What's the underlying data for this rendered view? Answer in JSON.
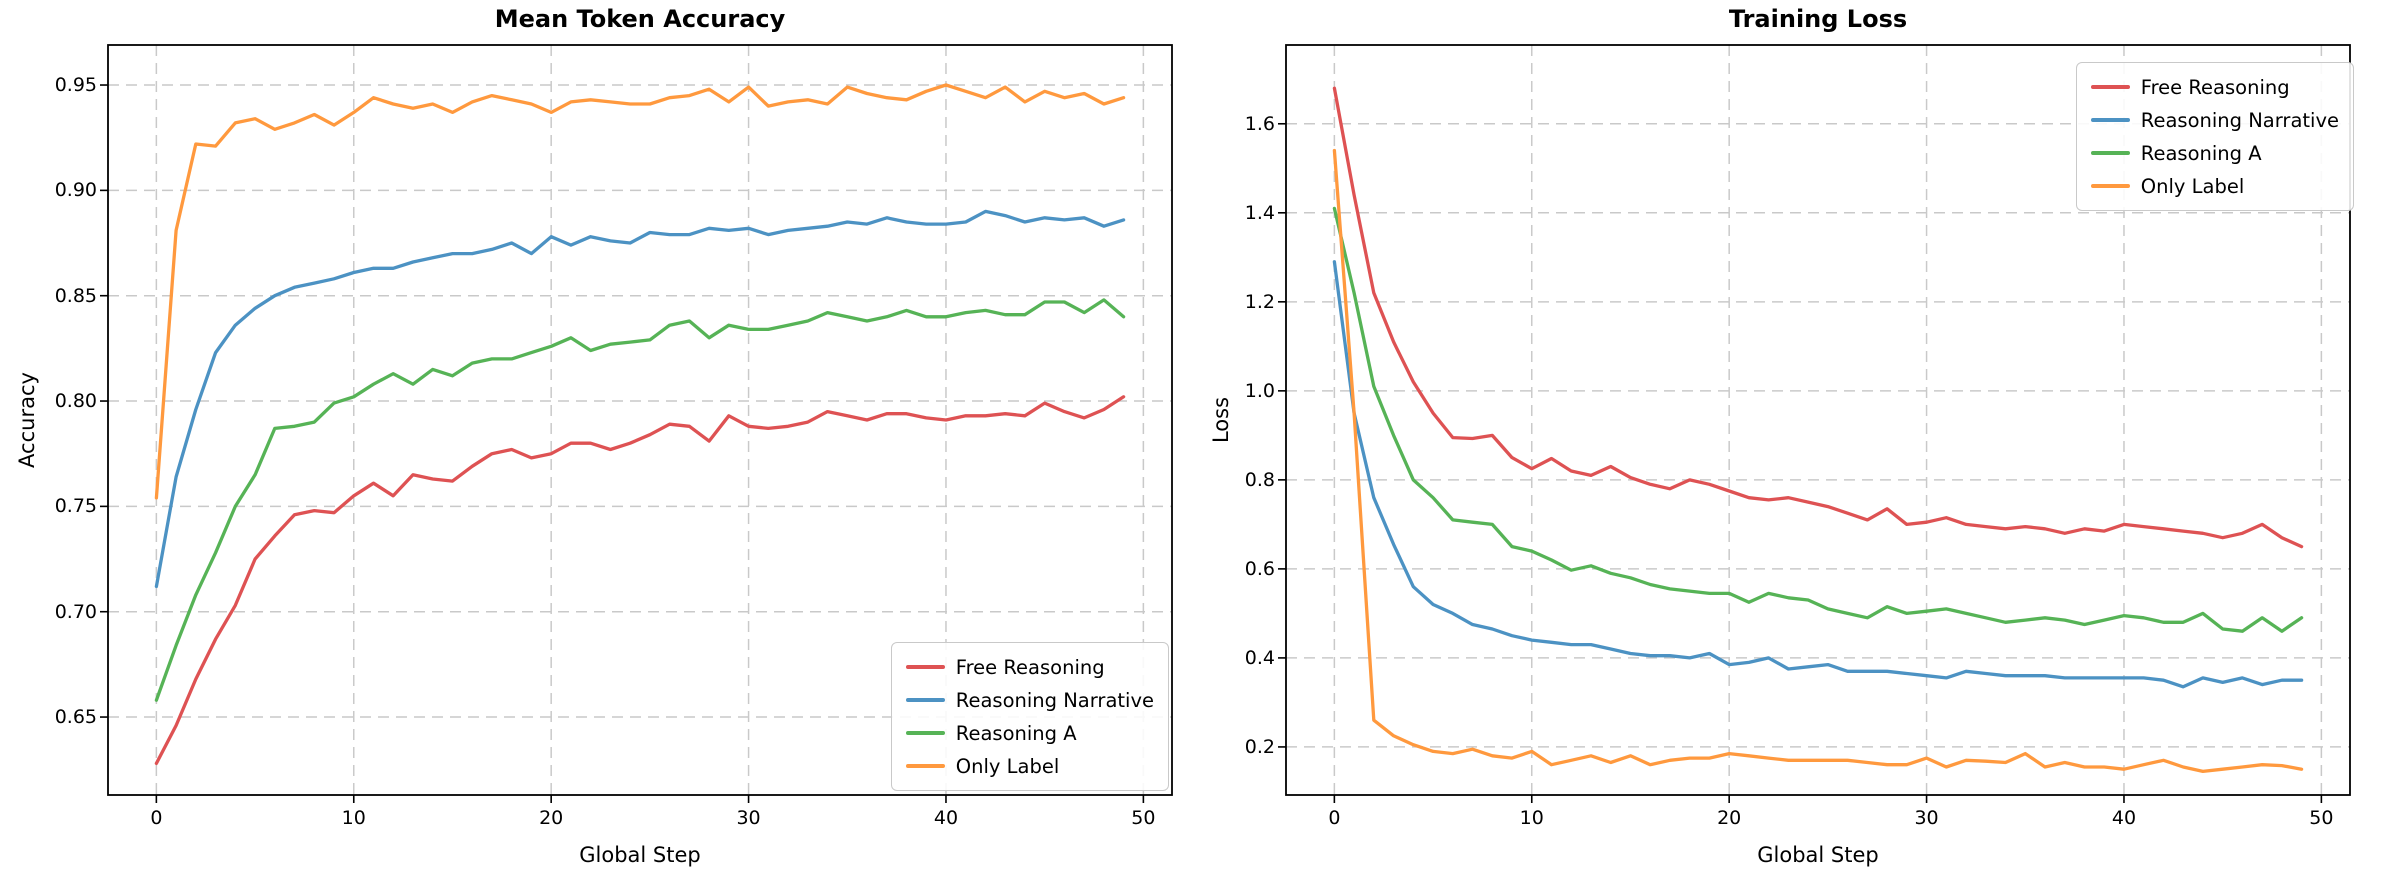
{
  "figure": {
    "background": "#ffffff"
  },
  "chart_data": [
    {
      "type": "line",
      "title": "Mean Token Accuracy",
      "xlabel": "Global Step",
      "ylabel": "Accuracy",
      "grid": true,
      "legend_position": "lower right",
      "x_ticks": [
        0,
        10,
        20,
        30,
        40,
        50
      ],
      "y_ticks": [
        0.65,
        0.7,
        0.75,
        0.8,
        0.85,
        0.9,
        0.95
      ],
      "y_tick_decimals": 2,
      "xlim": [
        -2.45,
        51.45
      ],
      "ylim": [
        0.613,
        0.969
      ],
      "x": [
        0,
        1,
        2,
        3,
        4,
        5,
        6,
        7,
        8,
        9,
        10,
        11,
        12,
        13,
        14,
        15,
        16,
        17,
        18,
        19,
        20,
        21,
        22,
        23,
        24,
        25,
        26,
        27,
        28,
        29,
        30,
        31,
        32,
        33,
        34,
        35,
        36,
        37,
        38,
        39,
        40,
        41,
        42,
        43,
        44,
        45,
        46,
        47,
        48,
        49
      ],
      "series": [
        {
          "name": "Free Reasoning",
          "color": "#de5253",
          "values": [
            0.628,
            0.646,
            0.668,
            0.687,
            0.703,
            0.725,
            0.736,
            0.746,
            0.748,
            0.747,
            0.755,
            0.761,
            0.755,
            0.765,
            0.763,
            0.762,
            0.769,
            0.775,
            0.777,
            0.773,
            0.775,
            0.78,
            0.78,
            0.777,
            0.78,
            0.784,
            0.789,
            0.788,
            0.781,
            0.793,
            0.788,
            0.787,
            0.788,
            0.79,
            0.795,
            0.793,
            0.791,
            0.794,
            0.794,
            0.792,
            0.791,
            0.793,
            0.793,
            0.794,
            0.793,
            0.799,
            0.795,
            0.792,
            0.796,
            0.802
          ]
        },
        {
          "name": "Reasoning Narrative",
          "color": "#4c92c3",
          "values": [
            0.712,
            0.764,
            0.796,
            0.823,
            0.836,
            0.844,
            0.85,
            0.854,
            0.856,
            0.858,
            0.861,
            0.863,
            0.863,
            0.866,
            0.868,
            0.87,
            0.87,
            0.872,
            0.875,
            0.87,
            0.878,
            0.874,
            0.878,
            0.876,
            0.875,
            0.88,
            0.879,
            0.879,
            0.882,
            0.881,
            0.882,
            0.879,
            0.881,
            0.882,
            0.883,
            0.885,
            0.884,
            0.887,
            0.885,
            0.884,
            0.884,
            0.885,
            0.89,
            0.888,
            0.885,
            0.887,
            0.886,
            0.887,
            0.883,
            0.886
          ]
        },
        {
          "name": "Reasoning A",
          "color": "#56b356",
          "values": [
            0.658,
            0.684,
            0.708,
            0.728,
            0.75,
            0.765,
            0.787,
            0.788,
            0.79,
            0.799,
            0.802,
            0.808,
            0.813,
            0.808,
            0.815,
            0.812,
            0.818,
            0.82,
            0.82,
            0.823,
            0.826,
            0.83,
            0.824,
            0.827,
            0.828,
            0.829,
            0.836,
            0.838,
            0.83,
            0.836,
            0.834,
            0.834,
            0.836,
            0.838,
            0.842,
            0.84,
            0.838,
            0.84,
            0.843,
            0.84,
            0.84,
            0.842,
            0.843,
            0.841,
            0.841,
            0.847,
            0.847,
            0.842,
            0.848,
            0.84
          ]
        },
        {
          "name": "Only Label",
          "color": "#ff993e",
          "values": [
            0.754,
            0.881,
            0.922,
            0.921,
            0.932,
            0.934,
            0.929,
            0.932,
            0.936,
            0.931,
            0.937,
            0.944,
            0.941,
            0.939,
            0.941,
            0.937,
            0.942,
            0.945,
            0.943,
            0.941,
            0.937,
            0.942,
            0.943,
            0.942,
            0.941,
            0.941,
            0.944,
            0.945,
            0.948,
            0.942,
            0.949,
            0.94,
            0.942,
            0.943,
            0.941,
            0.949,
            0.946,
            0.944,
            0.943,
            0.947,
            0.95,
            0.947,
            0.944,
            0.949,
            0.942,
            0.947,
            0.944,
            0.946,
            0.941,
            0.944
          ]
        }
      ]
    },
    {
      "type": "line",
      "title": "Training Loss",
      "xlabel": "Global Step",
      "ylabel": "Loss",
      "grid": true,
      "legend_position": "upper right",
      "x_ticks": [
        0,
        10,
        20,
        30,
        40,
        50
      ],
      "y_ticks": [
        0.2,
        0.4,
        0.6,
        0.8,
        1.0,
        1.2,
        1.4,
        1.6
      ],
      "y_tick_decimals": 1,
      "xlim": [
        -2.45,
        51.45
      ],
      "ylim": [
        0.092,
        1.777
      ],
      "x": [
        0,
        1,
        2,
        3,
        4,
        5,
        6,
        7,
        8,
        9,
        10,
        11,
        12,
        13,
        14,
        15,
        16,
        17,
        18,
        19,
        20,
        21,
        22,
        23,
        24,
        25,
        26,
        27,
        28,
        29,
        30,
        31,
        32,
        33,
        34,
        35,
        36,
        37,
        38,
        39,
        40,
        41,
        42,
        43,
        44,
        45,
        46,
        47,
        48,
        49
      ],
      "series": [
        {
          "name": "Free Reasoning",
          "color": "#de5253",
          "values": [
            1.68,
            1.44,
            1.22,
            1.11,
            1.02,
            0.95,
            0.895,
            0.893,
            0.9,
            0.85,
            0.825,
            0.848,
            0.82,
            0.81,
            0.83,
            0.805,
            0.79,
            0.78,
            0.8,
            0.79,
            0.775,
            0.76,
            0.755,
            0.76,
            0.75,
            0.74,
            0.725,
            0.71,
            0.735,
            0.7,
            0.705,
            0.715,
            0.7,
            0.695,
            0.69,
            0.695,
            0.69,
            0.68,
            0.69,
            0.685,
            0.7,
            0.695,
            0.69,
            0.685,
            0.68,
            0.67,
            0.68,
            0.7,
            0.67,
            0.65
          ]
        },
        {
          "name": "Reasoning Narrative",
          "color": "#4c92c3",
          "values": [
            1.29,
            0.95,
            0.76,
            0.655,
            0.56,
            0.52,
            0.5,
            0.475,
            0.465,
            0.45,
            0.44,
            0.435,
            0.43,
            0.43,
            0.42,
            0.41,
            0.405,
            0.405,
            0.4,
            0.41,
            0.385,
            0.39,
            0.4,
            0.375,
            0.38,
            0.385,
            0.37,
            0.37,
            0.37,
            0.365,
            0.36,
            0.355,
            0.37,
            0.365,
            0.36,
            0.36,
            0.36,
            0.355,
            0.355,
            0.355,
            0.355,
            0.355,
            0.35,
            0.335,
            0.355,
            0.345,
            0.355,
            0.34,
            0.35,
            0.35
          ]
        },
        {
          "name": "Reasoning A",
          "color": "#56b356",
          "values": [
            1.41,
            1.22,
            1.01,
            0.9,
            0.8,
            0.76,
            0.71,
            0.705,
            0.7,
            0.65,
            0.64,
            0.62,
            0.597,
            0.607,
            0.59,
            0.58,
            0.565,
            0.555,
            0.55,
            0.545,
            0.545,
            0.525,
            0.545,
            0.535,
            0.53,
            0.51,
            0.5,
            0.49,
            0.515,
            0.5,
            0.505,
            0.51,
            0.5,
            0.49,
            0.48,
            0.485,
            0.49,
            0.485,
            0.475,
            0.485,
            0.495,
            0.49,
            0.48,
            0.48,
            0.5,
            0.465,
            0.46,
            0.49,
            0.46,
            0.49
          ]
        },
        {
          "name": "Only Label",
          "color": "#ff993e",
          "values": [
            1.54,
            0.95,
            0.26,
            0.225,
            0.205,
            0.19,
            0.185,
            0.195,
            0.18,
            0.175,
            0.19,
            0.16,
            0.17,
            0.18,
            0.165,
            0.18,
            0.16,
            0.17,
            0.175,
            0.175,
            0.185,
            0.18,
            0.175,
            0.17,
            0.17,
            0.17,
            0.17,
            0.165,
            0.16,
            0.16,
            0.175,
            0.155,
            0.17,
            0.168,
            0.165,
            0.185,
            0.155,
            0.165,
            0.155,
            0.155,
            0.15,
            0.16,
            0.17,
            0.155,
            0.145,
            0.15,
            0.155,
            0.16,
            0.158,
            0.15
          ]
        }
      ]
    }
  ]
}
